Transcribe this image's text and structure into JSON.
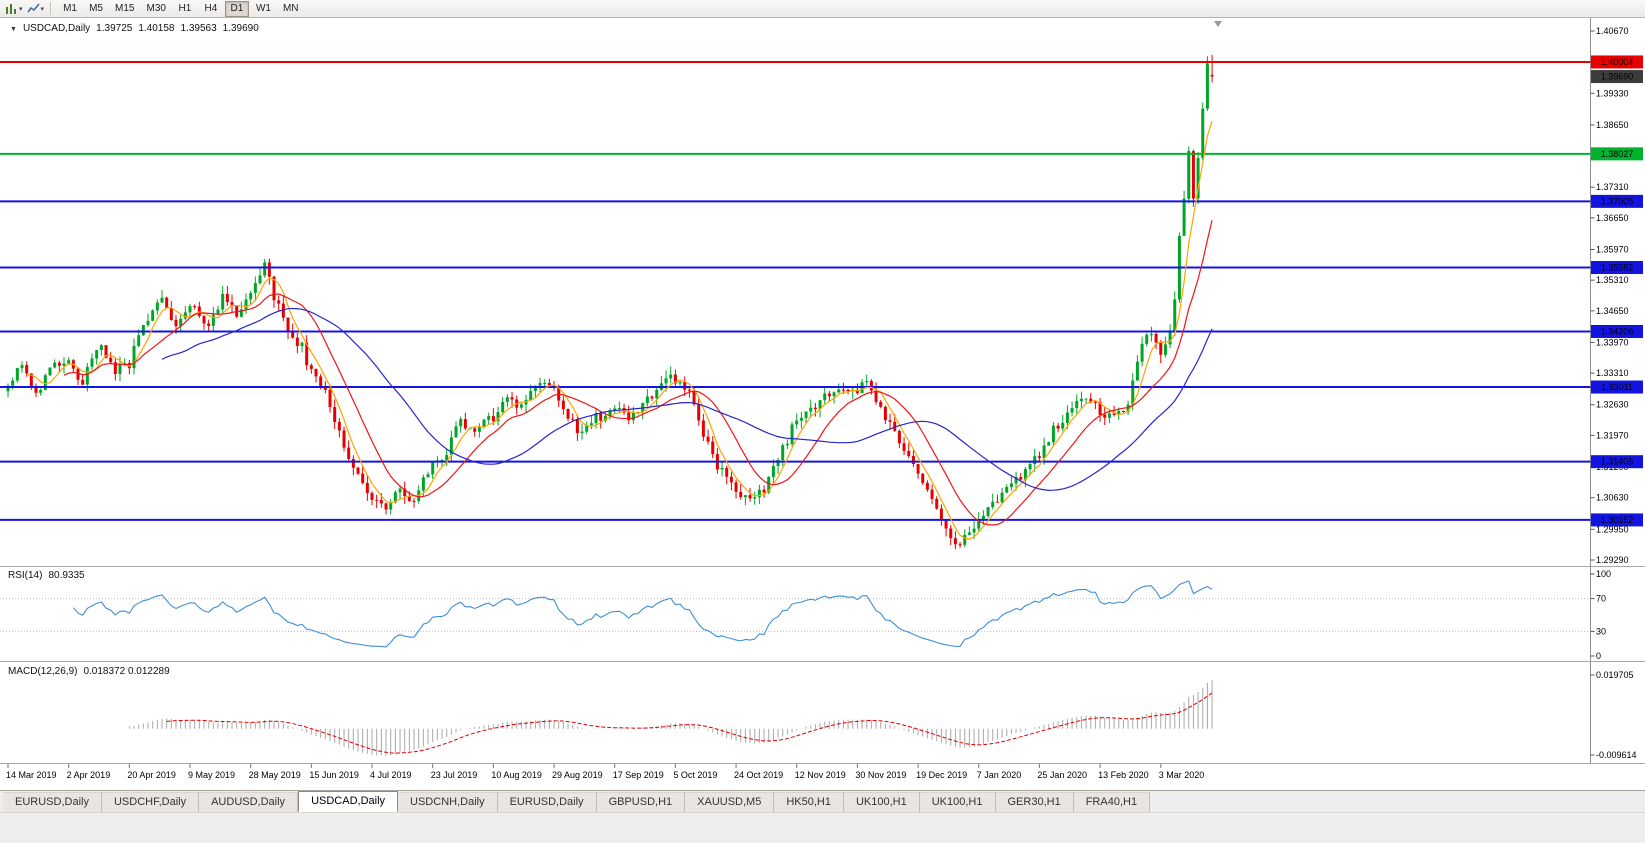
{
  "toolbar": {
    "timeframes": [
      "M1",
      "M5",
      "M15",
      "M30",
      "H1",
      "H4",
      "D1",
      "W1",
      "MN"
    ],
    "active": "D1"
  },
  "tabs": {
    "items": [
      "EURUSD,Daily",
      "USDCHF,Daily",
      "AUDUSD,Daily",
      "USDCAD,Daily",
      "USDCNH,Daily",
      "EURUSD,Daily",
      "GBPUSD,H1",
      "XAUUSD,M5",
      "HK50,H1",
      "UK100,H1",
      "UK100,H1",
      "GER30,H1",
      "FRA40,H1"
    ],
    "active_index": 3
  },
  "chart_data": {
    "type": "candlestick",
    "symbol": "USDCAD",
    "period": "Daily",
    "header": {
      "symbol_period": "USDCAD,Daily",
      "open": "1.39725",
      "high": "1.40158",
      "low": "1.39563",
      "close": "1.39690"
    },
    "colors": {
      "bull": "#00A525",
      "bear": "#E80000",
      "axis_text": "#000000",
      "separator": "#A8A8A8"
    },
    "y_axis": {
      "ticks": [
        "1.40670",
        "1.39330",
        "1.38650",
        "1.37310",
        "1.36650",
        "1.35970",
        "1.35310",
        "1.34650",
        "1.33970",
        "1.33310",
        "1.32630",
        "1.31970",
        "1.31290",
        "1.30630",
        "1.29950",
        "1.29290"
      ]
    },
    "x_labels": [
      "14 Mar 2019",
      "2 Apr 2019",
      "20 Apr 2019",
      "9 May 2019",
      "28 May 2019",
      "15 Jun 2019",
      "4 Jul 2019",
      "23 Jul 2019",
      "10 Aug 2019",
      "29 Aug 2019",
      "17 Sep 2019",
      "5 Oct 2019",
      "24 Oct 2019",
      "12 Nov 2019",
      "30 Nov 2019",
      "19 Dec 2019",
      "7 Jan 2020",
      "25 Jan 2020",
      "13 Feb 2020",
      "3 Mar 2020"
    ],
    "candles_per_label": 13,
    "candle_count": 259,
    "noise_seed": 42,
    "noise_amp": 0.0012,
    "wick_amp": 0.0018,
    "price_waypoints": [
      [
        0,
        1.331
      ],
      [
        3,
        1.3355
      ],
      [
        6,
        1.329
      ],
      [
        10,
        1.3345
      ],
      [
        13,
        1.335
      ],
      [
        16,
        1.3315
      ],
      [
        20,
        1.339
      ],
      [
        23,
        1.3335
      ],
      [
        26,
        1.335
      ],
      [
        29,
        1.3445
      ],
      [
        33,
        1.3485
      ],
      [
        36,
        1.343
      ],
      [
        39,
        1.347
      ],
      [
        43,
        1.344
      ],
      [
        46,
        1.3495
      ],
      [
        49,
        1.3455
      ],
      [
        52,
        1.3515
      ],
      [
        55,
        1.356
      ],
      [
        57,
        1.3495
      ],
      [
        60,
        1.3425
      ],
      [
        63,
        1.3385
      ],
      [
        65,
        1.333
      ],
      [
        68,
        1.329
      ],
      [
        70,
        1.3235
      ],
      [
        74,
        1.3125
      ],
      [
        78,
        1.3065
      ],
      [
        81,
        1.303
      ],
      [
        84,
        1.3085
      ],
      [
        87,
        1.3055
      ],
      [
        91,
        1.3135
      ],
      [
        94,
        1.3165
      ],
      [
        97,
        1.3225
      ],
      [
        100,
        1.321
      ],
      [
        104,
        1.3235
      ],
      [
        107,
        1.3285
      ],
      [
        110,
        1.326
      ],
      [
        113,
        1.331
      ],
      [
        117,
        1.33
      ],
      [
        120,
        1.3235
      ],
      [
        123,
        1.3195
      ],
      [
        126,
        1.3235
      ],
      [
        130,
        1.3255
      ],
      [
        133,
        1.3225
      ],
      [
        136,
        1.3265
      ],
      [
        140,
        1.331
      ],
      [
        143,
        1.332
      ],
      [
        146,
        1.329
      ],
      [
        149,
        1.32
      ],
      [
        152,
        1.3135
      ],
      [
        156,
        1.307
      ],
      [
        159,
        1.305
      ],
      [
        162,
        1.3085
      ],
      [
        165,
        1.315
      ],
      [
        169,
        1.323
      ],
      [
        172,
        1.3255
      ],
      [
        175,
        1.3285
      ],
      [
        178,
        1.3305
      ],
      [
        182,
        1.329
      ],
      [
        184,
        1.331
      ],
      [
        188,
        1.3235
      ],
      [
        192,
        1.316
      ],
      [
        195,
        1.312
      ],
      [
        198,
        1.307
      ],
      [
        201,
        1.299
      ],
      [
        203,
        1.2955
      ],
      [
        206,
        1.299
      ],
      [
        208,
        1.301
      ],
      [
        211,
        1.305
      ],
      [
        214,
        1.3075
      ],
      [
        217,
        1.311
      ],
      [
        221,
        1.316
      ],
      [
        224,
        1.321
      ],
      [
        227,
        1.3235
      ],
      [
        230,
        1.3285
      ],
      [
        234,
        1.325
      ],
      [
        237,
        1.323
      ],
      [
        240,
        1.327
      ],
      [
        243,
        1.3385
      ],
      [
        245,
        1.3425
      ],
      [
        247,
        1.336
      ],
      [
        249,
        1.342
      ],
      [
        250,
        1.348
      ],
      [
        251,
        1.362
      ],
      [
        252,
        1.37
      ],
      [
        253,
        1.381
      ],
      [
        254,
        1.37
      ],
      [
        255,
        1.38
      ],
      [
        256,
        1.39
      ],
      [
        257,
        1.3995
      ],
      [
        258,
        1.3969
      ]
    ],
    "current_candle": {
      "open": 1.39725,
      "high": 1.40158,
      "low": 1.39563,
      "close": 1.3969
    },
    "current_price": {
      "value": 1.3969,
      "label": "1.39690",
      "color": "#3C3C3C"
    },
    "levels": [
      {
        "value": 1.40004,
        "label": "1.40004",
        "color": "#E60000",
        "width": 2
      },
      {
        "value": 1.38027,
        "label": "1.38027",
        "color": "#00B22D",
        "width": 2
      },
      {
        "value": 1.37005,
        "label": "1.37005",
        "color": "#1414E0",
        "width": 2
      },
      {
        "value": 1.35582,
        "label": "1.35582",
        "color": "#1414E0",
        "width": 2
      },
      {
        "value": 1.34206,
        "label": "1.34206",
        "color": "#1414E0",
        "width": 2
      },
      {
        "value": 1.33011,
        "label": "1.33011",
        "color": "#1414E0",
        "width": 2
      },
      {
        "value": 1.31405,
        "label": "1.31405",
        "color": "#1414E0",
        "width": 2
      },
      {
        "value": 1.30152,
        "label": "1.30152",
        "color": "#1414E0",
        "width": 2
      }
    ],
    "moving_averages": [
      {
        "period": 5,
        "color": "#FFA400"
      },
      {
        "period": 13,
        "color": "#F01616"
      },
      {
        "period": 34,
        "color": "#2626CC"
      }
    ],
    "rsi": {
      "name": "RSI(14)",
      "value_text": "80.9335",
      "period": 14,
      "color": "#3E8FD6",
      "ticks": [
        {
          "label": "100",
          "value": 100
        },
        {
          "label": "70",
          "value": 70
        },
        {
          "label": "30",
          "value": 30
        },
        {
          "label": "0",
          "value": 0
        }
      ],
      "guides": [
        70,
        30
      ]
    },
    "macd": {
      "name": "MACD(12,26,9)",
      "value_text": "0.018372 0.012289",
      "fast": 12,
      "slow": 26,
      "signal": 9,
      "hist_color": "#A8A8A8",
      "signal_color": "#E00000",
      "scale_max": 0.019705,
      "scale_min": -0.009614,
      "ticks": [
        {
          "label": "0.019705",
          "value": 0.019705
        },
        {
          "label": "-0.009614",
          "value": -0.009614
        }
      ]
    }
  }
}
